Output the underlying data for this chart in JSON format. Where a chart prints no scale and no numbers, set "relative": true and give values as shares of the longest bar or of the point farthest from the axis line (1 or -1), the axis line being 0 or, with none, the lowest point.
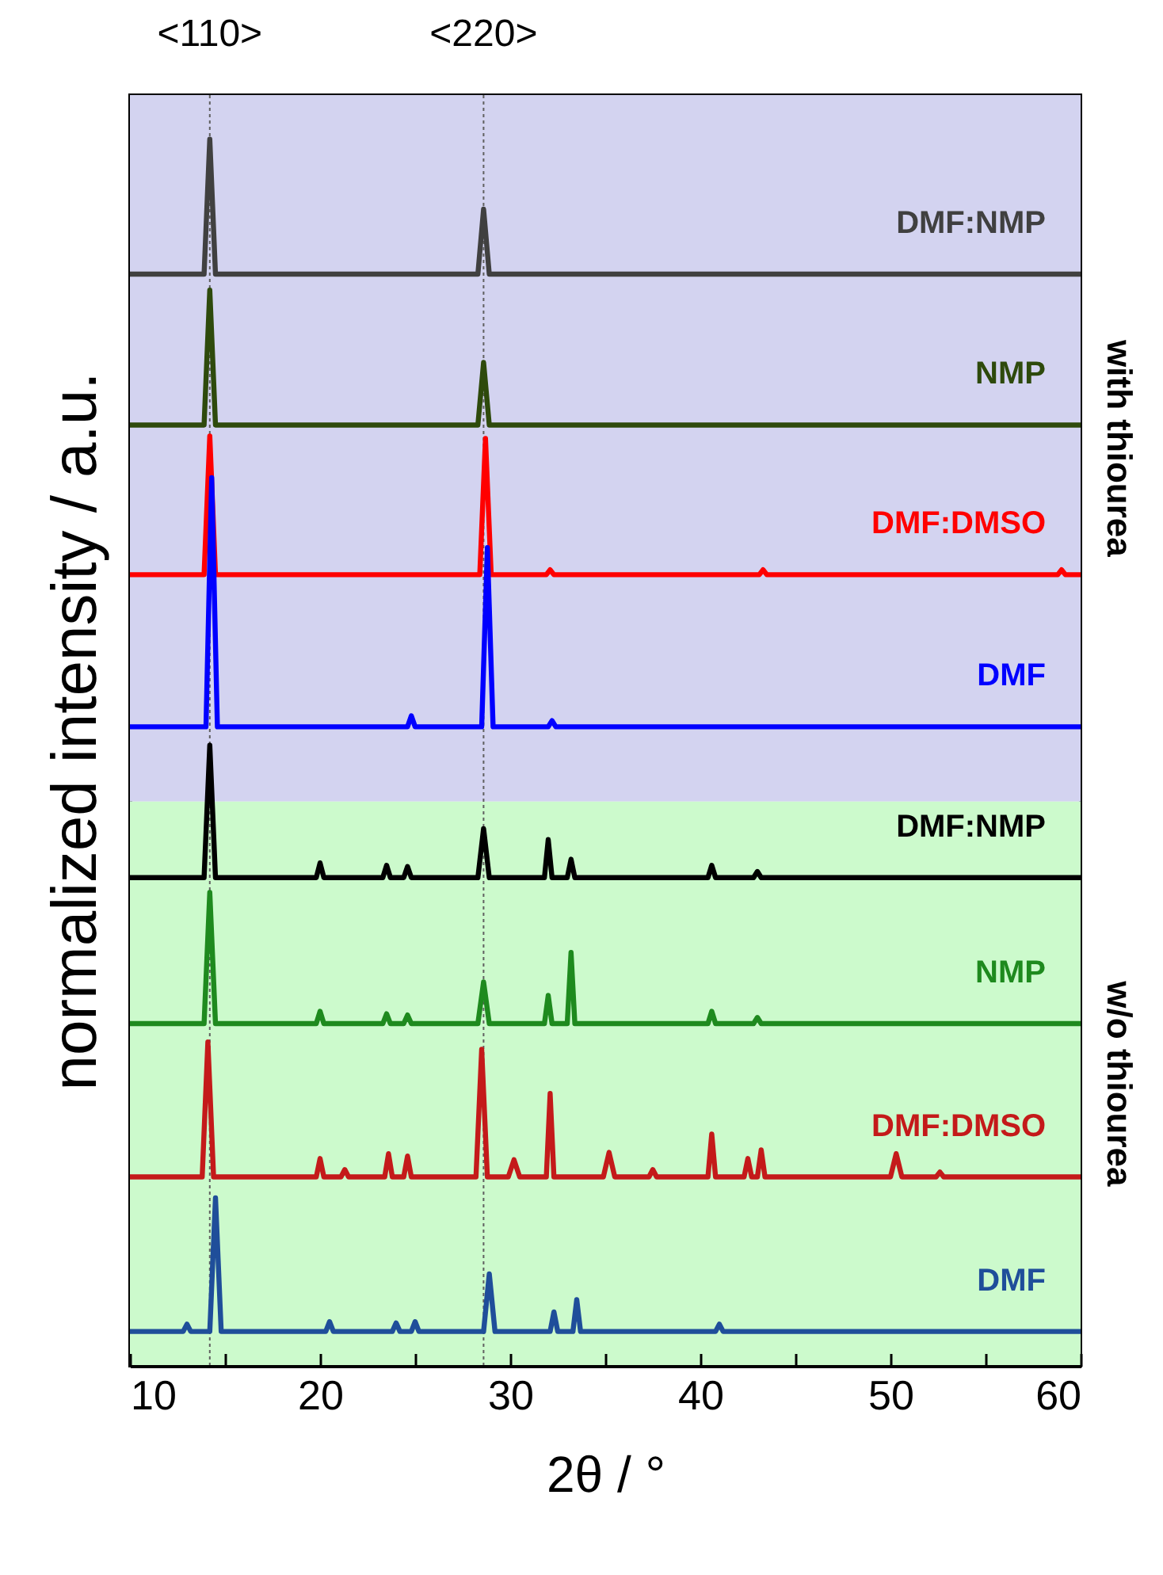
{
  "chart_data": {
    "type": "line",
    "xlabel": "2θ / °",
    "ylabel": "normalized intensity / a.u.",
    "relative": true,
    "legend": false,
    "tick_labels": "x",
    "xlim": [
      10,
      60
    ],
    "xticks": [
      10,
      {
        "value": 15,
        "label": null
      },
      20,
      {
        "value": 25,
        "label": null
      },
      30,
      {
        "value": 35,
        "label": null
      },
      40,
      {
        "value": 45,
        "label": null
      },
      50,
      {
        "value": 55,
        "label": null
      },
      60
    ],
    "ref_lines": [
      {
        "axis": "x",
        "value": 14.2,
        "color": "#606060",
        "line_style": "dotted"
      },
      {
        "axis": "x",
        "value": 28.6,
        "color": "#606060",
        "line_style": "dotted"
      }
    ],
    "annotations": [
      "<110>",
      "<220>"
    ],
    "bands": [
      {
        "axis": "y",
        "from": 0.46,
        "to": 1.036,
        "label": "with thiourea",
        "color": "#d3d3f0"
      },
      {
        "axis": "y",
        "from": 0,
        "to": 0.46,
        "label": "w/o thiourea",
        "color": "#ccfacc"
      }
    ],
    "series": [
      {
        "name": "DMF:NMP",
        "color": "#404040",
        "x": [
          10,
          13.9,
          14.2,
          14.5,
          28.3,
          28.6,
          28.9,
          60
        ],
        "values": [
          0.89,
          0.89,
          1.0,
          0.89,
          0.89,
          0.943,
          0.89,
          0.89
        ]
      },
      {
        "name": "NMP",
        "color": "#2e4a0c",
        "x": [
          10,
          13.9,
          14.2,
          14.5,
          28.3,
          28.6,
          28.9,
          60
        ],
        "values": [
          0.767,
          0.767,
          0.877,
          0.767,
          0.767,
          0.818,
          0.767,
          0.767
        ]
      },
      {
        "name": "DMF:DMSO",
        "color": "#ff0000",
        "x": [
          10,
          13.9,
          14.2,
          14.5,
          28.4,
          28.7,
          29.0,
          31.9,
          32.1,
          32.3,
          43.1,
          43.3,
          43.5,
          58.8,
          59.0,
          59.2,
          60
        ],
        "values": [
          0.645,
          0.645,
          0.758,
          0.645,
          0.645,
          0.756,
          0.645,
          0.645,
          0.649,
          0.645,
          0.645,
          0.649,
          0.645,
          0.645,
          0.649,
          0.645,
          0.645
        ]
      },
      {
        "name": "DMF",
        "color": "#0000ff",
        "x": [
          10,
          14.0,
          14.3,
          14.6,
          24.6,
          24.8,
          25.0,
          28.5,
          28.8,
          29.1,
          32.0,
          32.2,
          32.4,
          60
        ],
        "values": [
          0.521,
          0.521,
          0.724,
          0.521,
          0.521,
          0.53,
          0.521,
          0.521,
          0.667,
          0.521,
          0.521,
          0.526,
          0.521,
          0.521
        ]
      },
      {
        "name": "DMF:NMP",
        "color": "#000000",
        "x": [
          10,
          13.9,
          14.2,
          14.5,
          19.8,
          20.0,
          20.2,
          23.3,
          23.5,
          23.7,
          24.4,
          24.6,
          24.8,
          28.3,
          28.6,
          28.9,
          31.8,
          32.0,
          32.2,
          33.0,
          33.2,
          33.4,
          40.4,
          40.6,
          40.8,
          42.8,
          43.0,
          43.2,
          60
        ],
        "values": [
          0.398,
          0.398,
          0.506,
          0.398,
          0.398,
          0.41,
          0.398,
          0.398,
          0.408,
          0.398,
          0.398,
          0.407,
          0.398,
          0.398,
          0.438,
          0.398,
          0.398,
          0.429,
          0.398,
          0.398,
          0.413,
          0.398,
          0.398,
          0.408,
          0.398,
          0.398,
          0.403,
          0.398,
          0.398
        ]
      },
      {
        "name": "NMP",
        "color": "#1e8a1e",
        "x": [
          10,
          13.9,
          14.2,
          14.5,
          19.8,
          20.0,
          20.2,
          23.3,
          23.5,
          23.7,
          24.4,
          24.6,
          24.8,
          28.3,
          28.6,
          28.9,
          31.8,
          32.0,
          32.2,
          33.0,
          33.2,
          33.4,
          40.4,
          40.6,
          40.8,
          42.8,
          43.0,
          43.2,
          60
        ],
        "values": [
          0.279,
          0.279,
          0.386,
          0.279,
          0.279,
          0.289,
          0.279,
          0.279,
          0.287,
          0.279,
          0.279,
          0.286,
          0.279,
          0.279,
          0.313,
          0.279,
          0.279,
          0.302,
          0.279,
          0.279,
          0.337,
          0.279,
          0.279,
          0.289,
          0.279,
          0.279,
          0.284,
          0.279,
          0.279
        ]
      },
      {
        "name": "DMF:DMSO",
        "color": "#c41a1a",
        "x": [
          10,
          13.8,
          14.1,
          14.4,
          19.8,
          20.0,
          20.2,
          21.1,
          21.3,
          21.5,
          23.4,
          23.6,
          23.8,
          24.4,
          24.6,
          24.8,
          28.2,
          28.5,
          28.8,
          29.9,
          30.2,
          30.5,
          31.9,
          32.1,
          32.3,
          34.9,
          35.2,
          35.5,
          37.3,
          37.5,
          37.7,
          40.4,
          40.6,
          40.8,
          42.3,
          42.5,
          42.7,
          43.0,
          43.2,
          43.4,
          50.0,
          50.3,
          50.6,
          52.4,
          52.6,
          52.8,
          60
        ],
        "values": [
          0.154,
          0.154,
          0.264,
          0.154,
          0.154,
          0.169,
          0.154,
          0.154,
          0.16,
          0.154,
          0.154,
          0.173,
          0.154,
          0.154,
          0.171,
          0.154,
          0.154,
          0.258,
          0.154,
          0.154,
          0.168,
          0.154,
          0.154,
          0.222,
          0.154,
          0.154,
          0.174,
          0.154,
          0.154,
          0.16,
          0.154,
          0.154,
          0.189,
          0.154,
          0.154,
          0.169,
          0.154,
          0.154,
          0.176,
          0.154,
          0.154,
          0.173,
          0.154,
          0.154,
          0.158,
          0.154,
          0.154
        ]
      },
      {
        "name": "DMF",
        "color": "#1f4e9a",
        "x": [
          10,
          12.8,
          13.0,
          13.2,
          14.2,
          14.5,
          14.8,
          20.3,
          20.5,
          20.7,
          23.8,
          24.0,
          24.2,
          24.8,
          25.0,
          25.2,
          28.6,
          28.9,
          29.2,
          32.1,
          32.3,
          32.5,
          33.3,
          33.5,
          33.7,
          40.8,
          41.0,
          41.2,
          60
        ],
        "values": [
          0.028,
          0.028,
          0.034,
          0.028,
          0.028,
          0.137,
          0.028,
          0.028,
          0.036,
          0.028,
          0.028,
          0.035,
          0.028,
          0.028,
          0.036,
          0.028,
          0.028,
          0.075,
          0.028,
          0.028,
          0.044,
          0.028,
          0.028,
          0.054,
          0.028,
          0.028,
          0.034,
          0.028,
          0.028
        ]
      }
    ]
  }
}
